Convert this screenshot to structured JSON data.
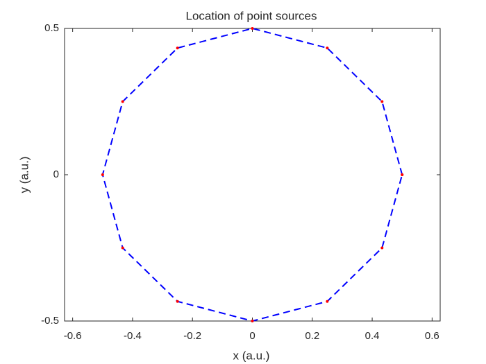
{
  "chart_data": {
    "type": "line",
    "title": "Location of point sources",
    "xlabel": "x (a.u.)",
    "ylabel": "y (a.u.)",
    "x": [
      0.5,
      0.433,
      0.25,
      0,
      -0.25,
      -0.433,
      -0.5,
      -0.433,
      -0.25,
      0,
      0.25,
      0.433,
      0.5
    ],
    "series": [
      {
        "color": "#0000ff",
        "marker_color": "#ff0000",
        "line_style": "dashed",
        "values": [
          0,
          0.25,
          0.433,
          0.5,
          0.433,
          0.25,
          0,
          -0.25,
          -0.433,
          -0.5,
          -0.433,
          -0.25,
          0
        ]
      }
    ],
    "xlim": [
      -0.627,
      0.627
    ],
    "ylim": [
      -0.5,
      0.5
    ],
    "xticks": [
      -0.6,
      -0.4,
      -0.2,
      0,
      0.2,
      0.4,
      0.6
    ],
    "yticks": [
      -0.5,
      0,
      0.5
    ],
    "grid": false
  }
}
